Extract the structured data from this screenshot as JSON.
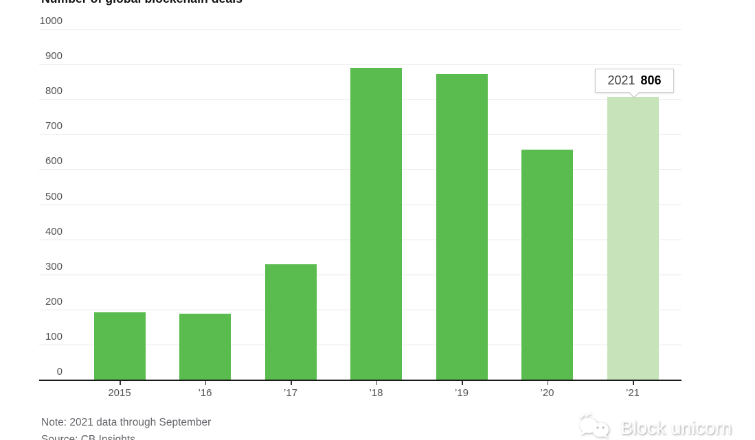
{
  "header": {
    "title": "Number of global blockchain deals"
  },
  "tooltip": {
    "year": "2021",
    "value": "806"
  },
  "footer": {
    "note": "Note: 2021 data through September",
    "source": "Source: CB Insights",
    "watermark": "Block unicorn"
  },
  "colors": {
    "bar": "#5abb4e",
    "bar_highlight": "#c6e3b9",
    "grid": "#e7e7e7",
    "axis": "#1a1a1a",
    "tick_text": "#555555",
    "note_text": "#65656b"
  },
  "chart_data": {
    "type": "bar",
    "title": "Number of global blockchain deals",
    "categories": [
      "2015",
      "’16",
      "’17",
      "’18",
      "’19",
      "’20",
      "’21"
    ],
    "values": [
      192,
      188,
      328,
      888,
      870,
      655,
      806
    ],
    "series": [
      {
        "name": "Number of global blockchain deals",
        "values": [
          192,
          188,
          328,
          888,
          870,
          655,
          806
        ]
      }
    ],
    "highlight_index": 6,
    "highlight_annotation": {
      "label": "2021",
      "value": 806
    },
    "xlabel": "",
    "ylabel": "",
    "ylim": [
      0,
      1000
    ],
    "yticks": [
      0,
      100,
      200,
      300,
      400,
      500,
      600,
      700,
      800,
      900,
      1000
    ],
    "grid": true,
    "legend_position": "none"
  }
}
